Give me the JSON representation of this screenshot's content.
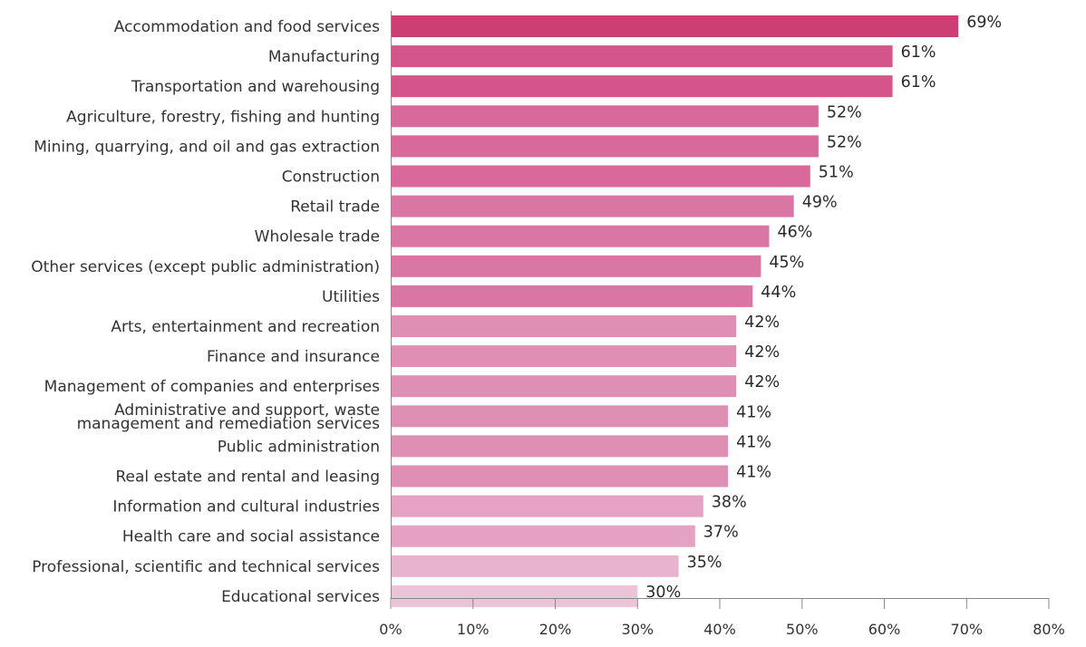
{
  "chart_data": {
    "type": "bar",
    "orientation": "horizontal",
    "categories": [
      [
        "Accommodation and food services"
      ],
      [
        "Manufacturing"
      ],
      [
        "Transportation and warehousing"
      ],
      [
        "Agriculture, forestry, fishing and hunting"
      ],
      [
        "Mining, quarrying, and oil and gas extraction"
      ],
      [
        "Construction"
      ],
      [
        "Retail trade"
      ],
      [
        "Wholesale trade"
      ],
      [
        "Other services (except public administration)"
      ],
      [
        "Utilities"
      ],
      [
        "Arts, entertainment and recreation"
      ],
      [
        "Finance and insurance"
      ],
      [
        "Management of companies and enterprises"
      ],
      [
        "Administrative and support, waste",
        "management and remediation services"
      ],
      [
        "Public administration"
      ],
      [
        "Real estate and rental and leasing"
      ],
      [
        "Information and cultural industries"
      ],
      [
        "Health care and social assistance"
      ],
      [
        "Professional, scientific and technical services"
      ],
      [
        "Educational services"
      ]
    ],
    "values": [
      69,
      61,
      61,
      52,
      52,
      51,
      49,
      46,
      45,
      44,
      42,
      42,
      42,
      41,
      41,
      41,
      38,
      37,
      35,
      30
    ],
    "value_labels": [
      "69%",
      "61%",
      "61%",
      "52%",
      "52%",
      "51%",
      "49%",
      "46%",
      "45%",
      "44%",
      "42%",
      "42%",
      "42%",
      "41%",
      "41%",
      "41%",
      "38%",
      "37%",
      "35%",
      "30%"
    ],
    "bar_colors": [
      "#cb3f73",
      "#d3558a",
      "#d3558a",
      "#d8699a",
      "#d8699a",
      "#d8699a",
      "#da76a3",
      "#da76a3",
      "#da76a3",
      "#da76a3",
      "#df8fb4",
      "#df8fb4",
      "#df8fb4",
      "#df8fb4",
      "#df8fb4",
      "#df8fb4",
      "#e5a2c2",
      "#e5a2c2",
      "#e8b3cd",
      "#ecc4d8"
    ],
    "xlim": [
      0,
      80
    ],
    "xticks": [
      0,
      10,
      20,
      30,
      40,
      50,
      60,
      70,
      80
    ],
    "xtick_labels": [
      "0%",
      "10%",
      "20%",
      "30%",
      "40%",
      "50%",
      "60%",
      "70%",
      "80%"
    ],
    "title": "",
    "xlabel": "",
    "ylabel": "",
    "grid": false,
    "legend": "none"
  }
}
